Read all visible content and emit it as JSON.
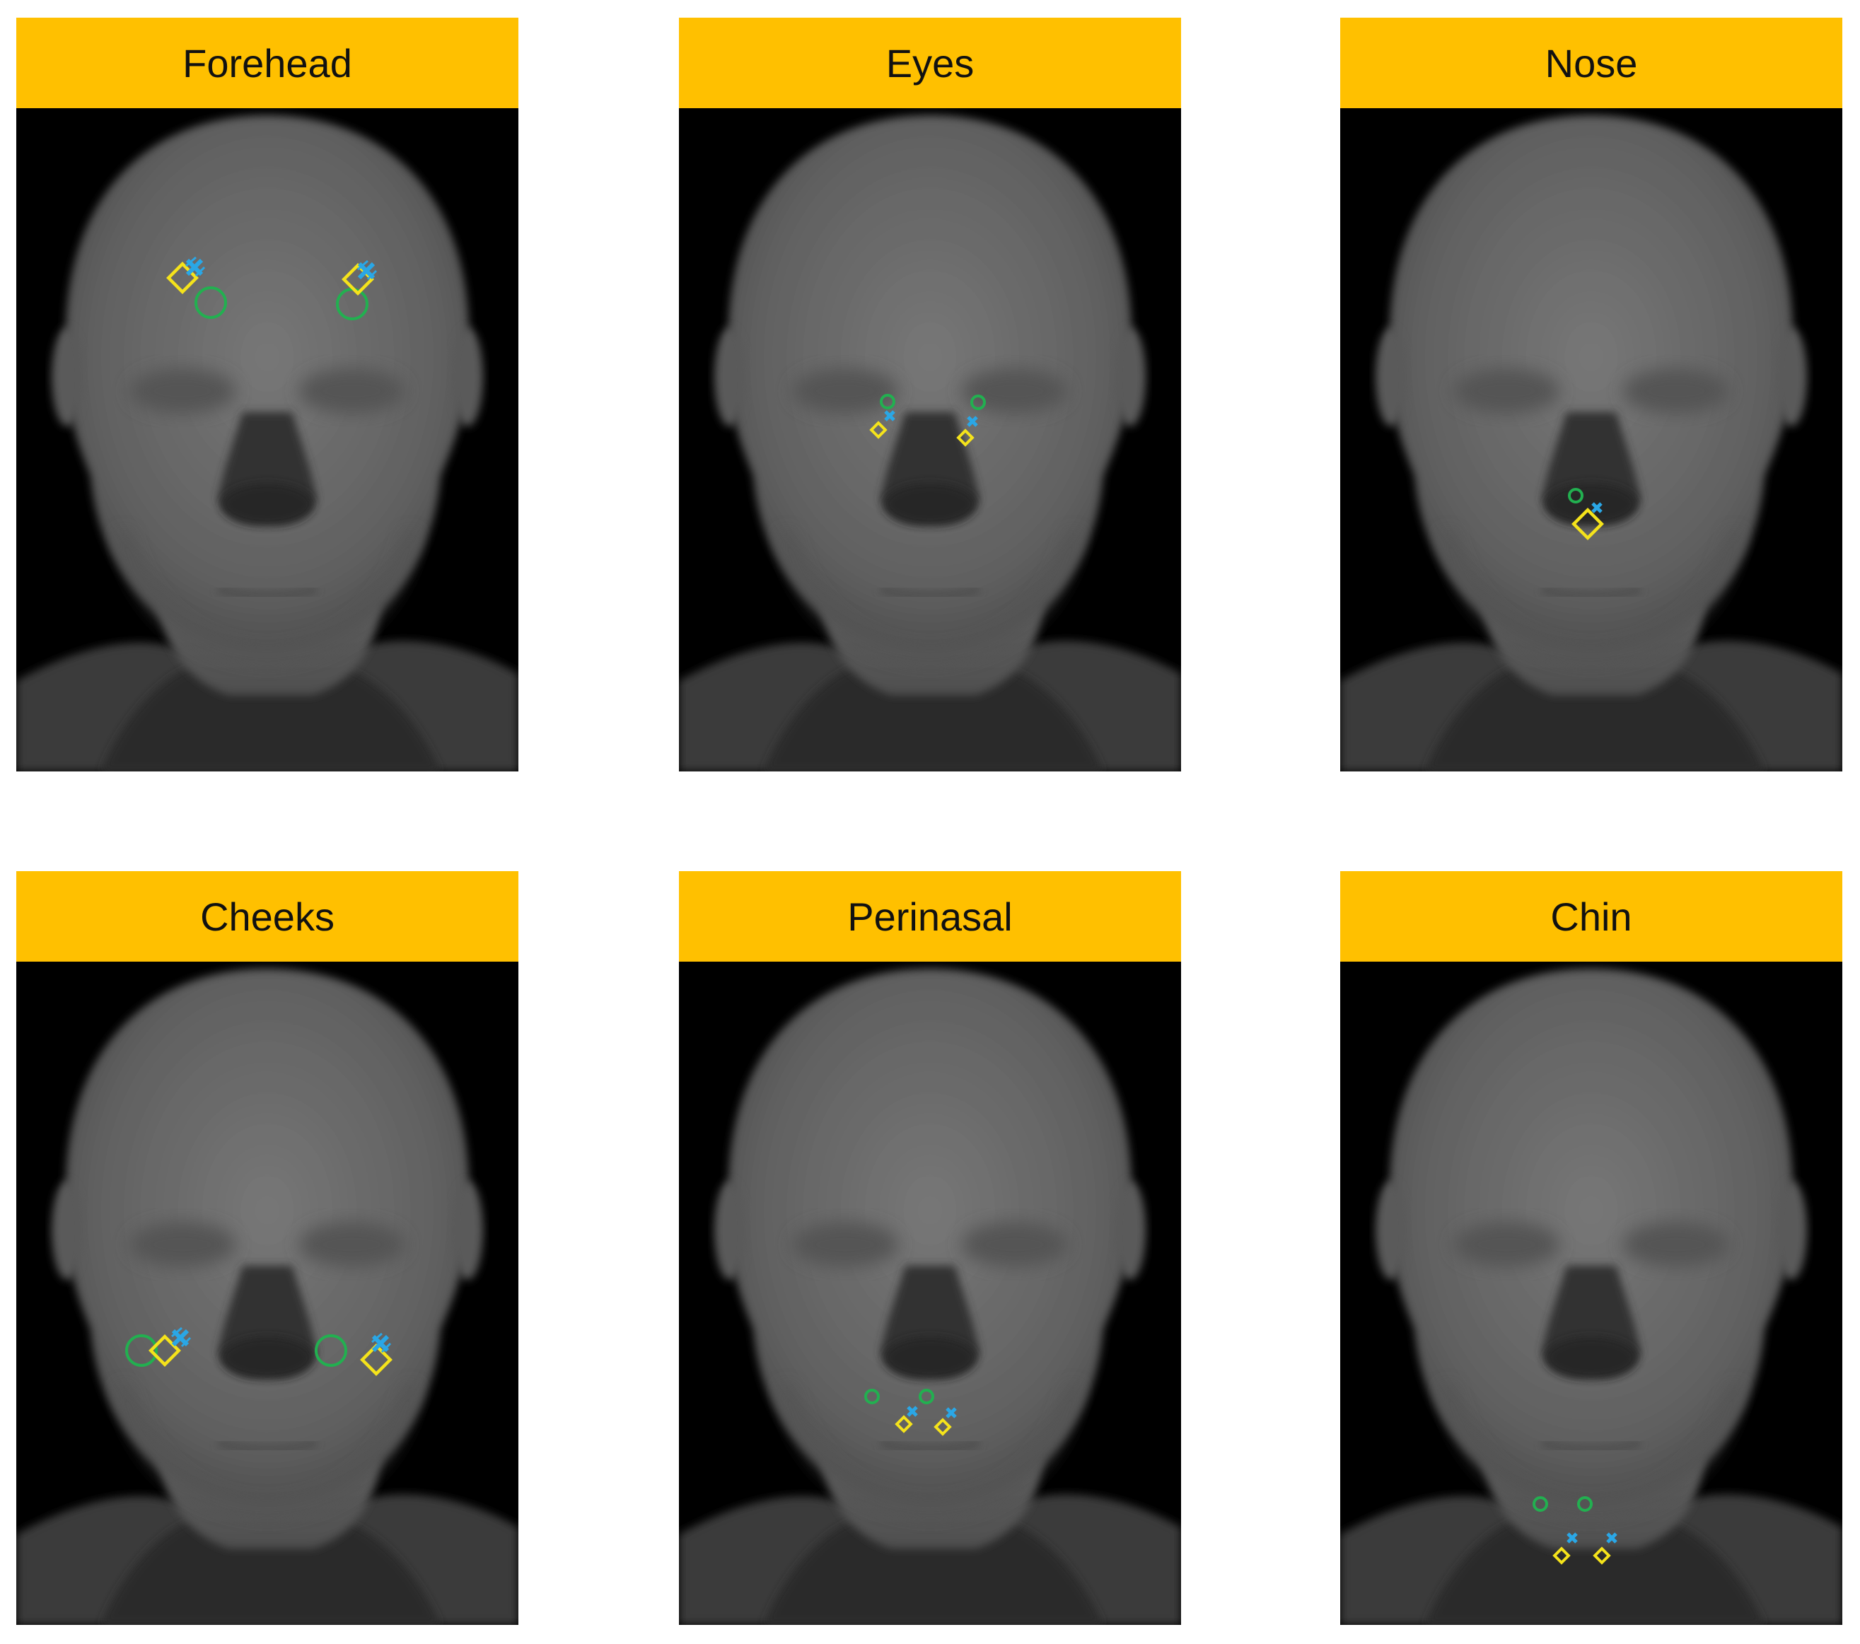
{
  "panels": [
    {
      "title": "Forehead"
    },
    {
      "title": "Eyes"
    },
    {
      "title": "Nose"
    },
    {
      "title": "Cheeks"
    },
    {
      "title": "Perinasal"
    },
    {
      "title": "Chin"
    }
  ],
  "colors": {
    "header_bg": "#FFC000",
    "marker_circle": "#22B050",
    "marker_cross": "#2AA7E6",
    "marker_diamond": "#F5E31B",
    "background": "#000000",
    "face": "#6b6b6b"
  },
  "markers": {
    "circle": "green-circle",
    "cross": "blue-cross",
    "diamond": "yellow-diamond"
  }
}
